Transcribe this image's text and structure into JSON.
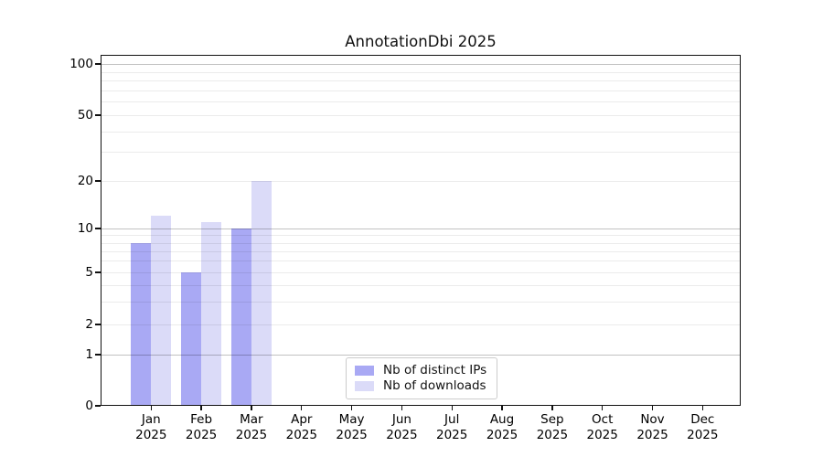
{
  "chart_data": {
    "type": "bar",
    "title": "AnnotationDbi 2025",
    "x_months": [
      "Jan",
      "Feb",
      "Mar",
      "Apr",
      "May",
      "Jun",
      "Jul",
      "Aug",
      "Sep",
      "Oct",
      "Nov",
      "Dec"
    ],
    "x_year": "2025",
    "series": [
      {
        "name": "Nb of distinct IPs",
        "color": "#a9a9f4",
        "values": [
          8,
          5,
          10,
          0,
          0,
          0,
          0,
          0,
          0,
          0,
          0,
          0
        ]
      },
      {
        "name": "Nb of downloads",
        "color": "#dbdbf8",
        "values": [
          12,
          11,
          20,
          0,
          0,
          0,
          0,
          0,
          0,
          0,
          0,
          0
        ]
      }
    ],
    "y_ticks": [
      0,
      1,
      2,
      5,
      10,
      20,
      50,
      100
    ],
    "y_major_gridlines": [
      1,
      10,
      100
    ],
    "y_minor_gridlines": [
      2,
      3,
      4,
      5,
      6,
      7,
      8,
      9,
      20,
      30,
      40,
      50,
      60,
      70,
      80,
      90
    ],
    "y_axis_scale": "log-like (0 baseline with log decades)",
    "ylim": [
      0,
      100
    ],
    "grid": "horizontal major+minor",
    "legend_position": "lower center",
    "legend_entries": [
      "Nb of distinct IPs",
      "Nb of downloads"
    ]
  }
}
